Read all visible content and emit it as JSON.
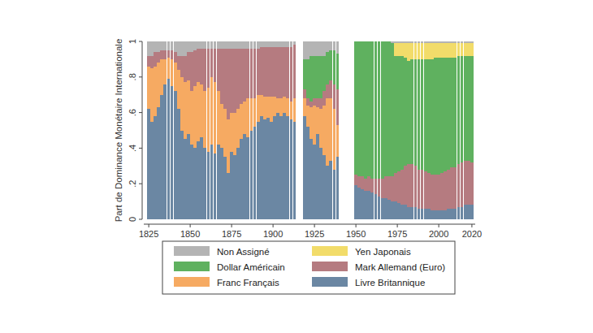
{
  "chart_data": {
    "type": "bar",
    "stacked": true,
    "y_label": "Part de Dominance Monétaire Internationale",
    "xlim": [
      1822,
      2022
    ],
    "xticks": [
      1825,
      1850,
      1875,
      1900,
      1925,
      1950,
      1975,
      2000,
      2020
    ],
    "ylim": [
      0,
      1
    ],
    "yticks": [
      0,
      {
        "value": 0.2,
        "label": ".2"
      },
      {
        "value": 0.4,
        "label": ".4"
      },
      {
        "value": 0.6,
        "label": ".6"
      },
      {
        "value": 0.8,
        "label": ".8"
      },
      1
    ],
    "legend": "bottom",
    "x": [
      1825,
      1827,
      1829,
      1831,
      1833,
      1835,
      1837,
      1839,
      1841,
      1843,
      1845,
      1847,
      1849,
      1851,
      1853,
      1855,
      1857,
      1859,
      1861,
      1863,
      1865,
      1867,
      1869,
      1871,
      1873,
      1875,
      1877,
      1879,
      1881,
      1883,
      1885,
      1887,
      1889,
      1891,
      1893,
      1895,
      1897,
      1899,
      1901,
      1903,
      1905,
      1907,
      1909,
      1911,
      1913,
      1919,
      1921,
      1923,
      1925,
      1927,
      1929,
      1931,
      1933,
      1935,
      1937,
      1939,
      1950,
      1952,
      1954,
      1956,
      1958,
      1960,
      1962,
      1964,
      1966,
      1968,
      1970,
      1972,
      1974,
      1976,
      1978,
      1980,
      1982,
      1984,
      1986,
      1988,
      1990,
      1992,
      1994,
      1996,
      1998,
      2000,
      2002,
      2004,
      2006,
      2008,
      2010,
      2012,
      2014,
      2016,
      2018,
      2020
    ],
    "series": [
      {
        "name": "Livre Britannique",
        "color": "#6b87a3",
        "values": [
          0.62,
          0.55,
          0.58,
          0.63,
          0.7,
          0.76,
          0.79,
          0.75,
          0.72,
          0.62,
          0.5,
          0.45,
          0.48,
          0.42,
          0.4,
          0.44,
          0.46,
          0.4,
          0.38,
          0.42,
          0.37,
          0.42,
          0.4,
          0.35,
          0.26,
          0.38,
          0.36,
          0.4,
          0.45,
          0.48,
          0.46,
          0.5,
          0.52,
          0.55,
          0.58,
          0.56,
          0.57,
          0.55,
          0.58,
          0.6,
          0.58,
          0.6,
          0.58,
          0.56,
          0.55,
          0.58,
          0.52,
          0.45,
          0.42,
          0.48,
          0.4,
          0.36,
          0.3,
          0.33,
          0.28,
          0.35,
          0.19,
          0.18,
          0.17,
          0.16,
          0.16,
          0.15,
          0.14,
          0.13,
          0.12,
          0.12,
          0.11,
          0.1,
          0.1,
          0.09,
          0.08,
          0.08,
          0.07,
          0.07,
          0.07,
          0.06,
          0.06,
          0.06,
          0.06,
          0.05,
          0.05,
          0.05,
          0.05,
          0.05,
          0.06,
          0.06,
          0.06,
          0.07,
          0.07,
          0.08,
          0.08,
          0.08
        ]
      },
      {
        "name": "Franc Français",
        "color": "#f6aa62",
        "values": [
          0.24,
          0.3,
          0.28,
          0.25,
          0.2,
          0.14,
          0.12,
          0.15,
          0.16,
          0.22,
          0.3,
          0.32,
          0.3,
          0.3,
          0.35,
          0.33,
          0.3,
          0.32,
          0.36,
          0.38,
          0.4,
          0.3,
          0.25,
          0.27,
          0.3,
          0.22,
          0.24,
          0.22,
          0.2,
          0.18,
          0.22,
          0.18,
          0.16,
          0.15,
          0.12,
          0.13,
          0.12,
          0.14,
          0.11,
          0.08,
          0.1,
          0.09,
          0.1,
          0.1,
          0.13,
          0.1,
          0.12,
          0.18,
          0.22,
          0.15,
          0.22,
          0.28,
          0.38,
          0.35,
          0.34,
          0.18,
          0,
          0,
          0,
          0,
          0,
          0,
          0,
          0,
          0,
          0,
          0,
          0,
          0,
          0,
          0,
          0,
          0,
          0,
          0,
          0,
          0,
          0,
          0,
          0,
          0,
          0,
          0,
          0,
          0,
          0,
          0,
          0,
          0,
          0,
          0,
          0
        ]
      },
      {
        "name": "Mark Allemand (Euro)",
        "color": "#b57b80",
        "values": [
          0.06,
          0.07,
          0.08,
          0.06,
          0.05,
          0.05,
          0.04,
          0.05,
          0.06,
          0.08,
          0.12,
          0.15,
          0.16,
          0.22,
          0.2,
          0.19,
          0.2,
          0.24,
          0.22,
          0.16,
          0.19,
          0.24,
          0.31,
          0.34,
          0.4,
          0.36,
          0.36,
          0.34,
          0.31,
          0.3,
          0.28,
          0.28,
          0.28,
          0.26,
          0.27,
          0.28,
          0.28,
          0.28,
          0.28,
          0.29,
          0.29,
          0.28,
          0.29,
          0.31,
          0.3,
          0.05,
          0.04,
          0.03,
          0.04,
          0.05,
          0.06,
          0.08,
          0.08,
          0.1,
          0.14,
          0.2,
          0.06,
          0.06,
          0.07,
          0.07,
          0.08,
          0.08,
          0.09,
          0.1,
          0.11,
          0.12,
          0.13,
          0.14,
          0.16,
          0.18,
          0.2,
          0.22,
          0.24,
          0.24,
          0.23,
          0.22,
          0.22,
          0.21,
          0.2,
          0.2,
          0.2,
          0.2,
          0.21,
          0.22,
          0.22,
          0.23,
          0.23,
          0.24,
          0.25,
          0.25,
          0.25,
          0.24
        ]
      },
      {
        "name": "Dollar Américain",
        "color": "#5fb15f",
        "values": [
          0,
          0,
          0,
          0,
          0,
          0,
          0,
          0,
          0,
          0,
          0,
          0,
          0,
          0,
          0,
          0,
          0,
          0,
          0,
          0,
          0,
          0,
          0,
          0,
          0,
          0,
          0,
          0,
          0,
          0,
          0,
          0,
          0,
          0,
          0,
          0,
          0,
          0,
          0,
          0,
          0,
          0,
          0,
          0,
          0,
          0.17,
          0.22,
          0.26,
          0.24,
          0.24,
          0.24,
          0.2,
          0.18,
          0.17,
          0.19,
          0.2,
          0.75,
          0.76,
          0.76,
          0.77,
          0.76,
          0.77,
          0.77,
          0.77,
          0.77,
          0.76,
          0.76,
          0.75,
          0.66,
          0.65,
          0.64,
          0.61,
          0.58,
          0.59,
          0.6,
          0.62,
          0.62,
          0.63,
          0.64,
          0.65,
          0.66,
          0.66,
          0.65,
          0.64,
          0.63,
          0.62,
          0.62,
          0.61,
          0.6,
          0.59,
          0.59,
          0.6
        ]
      },
      {
        "name": "Yen Japonais",
        "color": "#f2dc6a",
        "values": [
          0,
          0,
          0,
          0,
          0,
          0,
          0,
          0,
          0,
          0,
          0,
          0,
          0,
          0,
          0,
          0,
          0,
          0,
          0,
          0,
          0,
          0,
          0,
          0,
          0,
          0,
          0,
          0,
          0,
          0,
          0,
          0,
          0,
          0,
          0,
          0,
          0,
          0,
          0,
          0,
          0,
          0,
          0,
          0,
          0,
          0,
          0,
          0,
          0,
          0,
          0,
          0,
          0,
          0,
          0,
          0,
          0,
          0,
          0,
          0,
          0,
          0,
          0,
          0,
          0,
          0,
          0,
          0,
          0.07,
          0.07,
          0.07,
          0.08,
          0.1,
          0.09,
          0.09,
          0.09,
          0.09,
          0.09,
          0.09,
          0.09,
          0.08,
          0.08,
          0.08,
          0.08,
          0.08,
          0.08,
          0.08,
          0.07,
          0.07,
          0.07,
          0.07,
          0.07
        ]
      },
      {
        "name": "Non Assigné",
        "color": "#b4b4b4",
        "values": [
          0.08,
          0.08,
          0.06,
          0.06,
          0.05,
          0.05,
          0.05,
          0.05,
          0.06,
          0.08,
          0.08,
          0.08,
          0.06,
          0.06,
          0.05,
          0.04,
          0.04,
          0.04,
          0.04,
          0.04,
          0.04,
          0.04,
          0.04,
          0.04,
          0.04,
          0.04,
          0.04,
          0.04,
          0.04,
          0.04,
          0.04,
          0.04,
          0.04,
          0.04,
          0.03,
          0.03,
          0.03,
          0.03,
          0.03,
          0.03,
          0.03,
          0.03,
          0.03,
          0.03,
          0.02,
          0.1,
          0.1,
          0.08,
          0.08,
          0.08,
          0.08,
          0.08,
          0.06,
          0.05,
          0.05,
          0.07,
          0,
          0,
          0,
          0,
          0,
          0,
          0,
          0,
          0,
          0,
          0,
          0.01,
          0.01,
          0.01,
          0.01,
          0.01,
          0.01,
          0.01,
          0.01,
          0.01,
          0.01,
          0.01,
          0.01,
          0.01,
          0.01,
          0.01,
          0.01,
          0.01,
          0.01,
          0.01,
          0.01,
          0.01,
          0.01,
          0.01,
          0.01,
          0.01
        ]
      }
    ]
  }
}
